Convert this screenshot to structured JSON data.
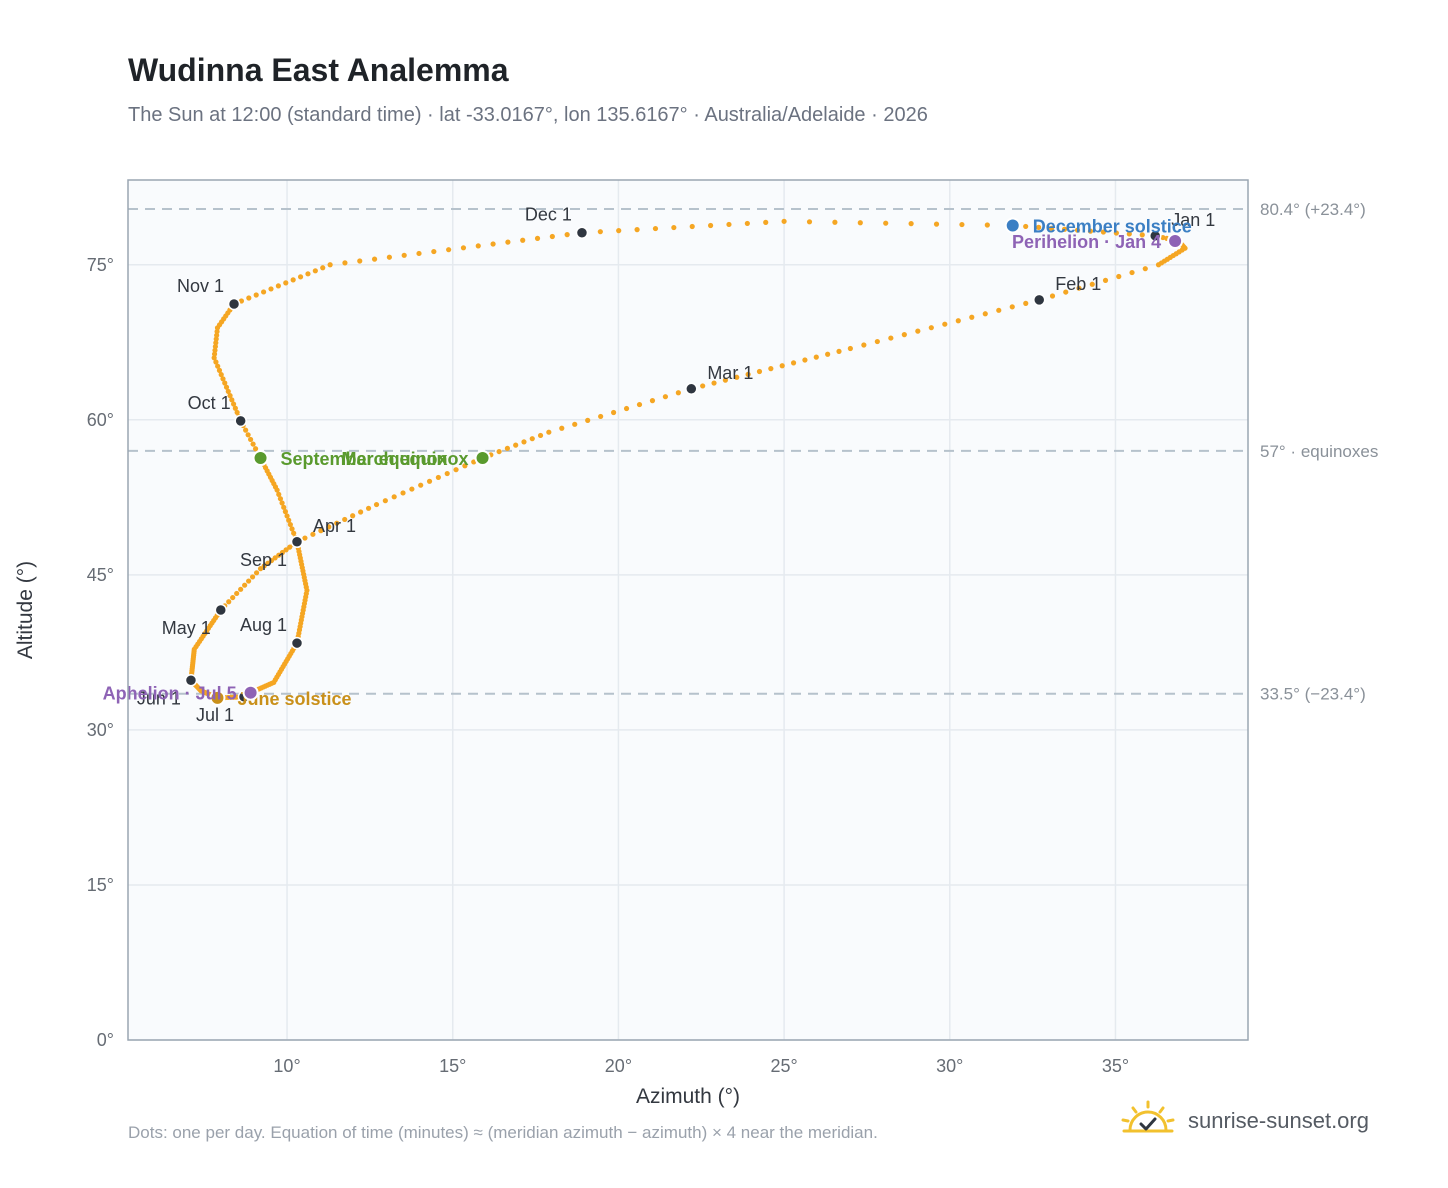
{
  "header": {
    "title": "Wudinna East Analemma",
    "subtitle": "The Sun at 12:00 (standard time) · lat -33.0167°, lon 135.6167° · Australia/Adelaide · 2026"
  },
  "footer": {
    "note": "Dots: one per day. Equation of time (minutes) ≈ (meridian azimuth − azimuth) × 4 near the meridian.",
    "brand": "sunrise-sunset.org"
  },
  "colors": {
    "path": "#f5a623",
    "month_dot": "#2f3640",
    "september_equinox": "#5a9a2e",
    "march_equinox": "#5a9a2e",
    "december_solstice": "#3b7fc4",
    "june_solstice": "#c9901a",
    "perihelion": "#8e63b5",
    "aphelion": "#8e63b5",
    "ref_line": "#b6c2cc",
    "plot_bg": "#f9fbfd",
    "grid": "#e5eaef",
    "frame": "#9aa6b2",
    "brand_sun": "#f2c12e"
  },
  "icons": {
    "brand": "sun-check-icon"
  },
  "chart_data": {
    "type": "scatter",
    "xlabel": "Azimuth (°)",
    "ylabel": "Altitude (°)",
    "xlim": [
      5.2,
      39
    ],
    "ylim": [
      0,
      83.2
    ],
    "x_ticks": [
      10,
      15,
      20,
      25,
      30,
      35
    ],
    "x_tick_labels": [
      "10°",
      "15°",
      "20°",
      "25°",
      "30°",
      "35°"
    ],
    "y_ticks": [
      0,
      15,
      30,
      45,
      60,
      75
    ],
    "y_tick_labels": [
      "0°",
      "15°",
      "30°",
      "45°",
      "60°",
      "75°"
    ],
    "grid": true,
    "reference_lines": [
      {
        "y": 80.4,
        "label": "80.4° (+23.4°)"
      },
      {
        "y": 57,
        "label": "57° · equinoxes"
      },
      {
        "y": 33.5,
        "label": "33.5° (−23.4°)"
      }
    ],
    "path_anchors": [
      {
        "day": 0,
        "x": 36.2,
        "y": 77.8
      },
      {
        "day": 6,
        "x": 36.9,
        "y": 77.3
      },
      {
        "day": 13,
        "x": 37.1,
        "y": 76.6
      },
      {
        "day": 22,
        "x": 36.3,
        "y": 75.0
      },
      {
        "day": 31,
        "x": 32.7,
        "y": 71.6
      },
      {
        "day": 45,
        "x": 27.0,
        "y": 66.9
      },
      {
        "day": 59,
        "x": 22.2,
        "y": 63.0
      },
      {
        "day": 70,
        "x": 17.9,
        "y": 58.8
      },
      {
        "day": 78,
        "x": 15.9,
        "y": 56.3
      },
      {
        "day": 90,
        "x": 12.7,
        "y": 51.8
      },
      {
        "day": 100,
        "x": 10.3,
        "y": 48.2
      },
      {
        "day": 110,
        "x": 9.2,
        "y": 45.6
      },
      {
        "day": 120,
        "x": 8.0,
        "y": 41.6
      },
      {
        "day": 135,
        "x": 7.2,
        "y": 37.8
      },
      {
        "day": 151,
        "x": 7.1,
        "y": 34.8
      },
      {
        "day": 160,
        "x": 7.4,
        "y": 33.8
      },
      {
        "day": 171,
        "x": 7.9,
        "y": 33.1
      },
      {
        "day": 181,
        "x": 8.7,
        "y": 33.2
      },
      {
        "day": 186,
        "x": 8.9,
        "y": 33.6
      },
      {
        "day": 197,
        "x": 9.6,
        "y": 34.6
      },
      {
        "day": 212,
        "x": 10.3,
        "y": 38.4
      },
      {
        "day": 228,
        "x": 10.6,
        "y": 43.5
      },
      {
        "day": 243,
        "x": 10.3,
        "y": 48.2
      },
      {
        "day": 255,
        "x": 9.7,
        "y": 53.2
      },
      {
        "day": 265,
        "x": 9.2,
        "y": 56.3
      },
      {
        "day": 273,
        "x": 8.6,
        "y": 59.9
      },
      {
        "day": 288,
        "x": 7.8,
        "y": 66.0
      },
      {
        "day": 296,
        "x": 7.9,
        "y": 68.9
      },
      {
        "day": 304,
        "x": 8.4,
        "y": 71.2
      },
      {
        "day": 317,
        "x": 11.3,
        "y": 75.0
      },
      {
        "day": 334,
        "x": 18.9,
        "y": 78.1
      },
      {
        "day": 345,
        "x": 25.0,
        "y": 79.2
      },
      {
        "day": 354,
        "x": 31.9,
        "y": 78.8
      },
      {
        "day": 365,
        "x": 36.2,
        "y": 77.8
      }
    ],
    "month_markers": [
      {
        "label": "Jan 1",
        "x": 36.2,
        "y": 77.8,
        "pos": "above-right"
      },
      {
        "label": "Feb 1",
        "x": 32.7,
        "y": 71.6,
        "pos": "above-right"
      },
      {
        "label": "Mar 1",
        "x": 22.2,
        "y": 63.0,
        "pos": "above-right"
      },
      {
        "label": "Apr 1",
        "x": 10.3,
        "y": 48.2,
        "pos": "above-right"
      },
      {
        "label": "May 1",
        "x": 8.0,
        "y": 41.6,
        "pos": "below-left"
      },
      {
        "label": "Jun 1",
        "x": 7.1,
        "y": 34.8,
        "pos": "below-left"
      },
      {
        "label": "Jul 1",
        "x": 8.7,
        "y": 33.2,
        "pos": "below-left"
      },
      {
        "label": "Aug 1",
        "x": 10.3,
        "y": 38.4,
        "pos": "above-left"
      },
      {
        "label": "Sep 1",
        "x": 10.3,
        "y": 48.2,
        "pos": "below-left"
      },
      {
        "label": "Oct 1",
        "x": 8.6,
        "y": 59.9,
        "pos": "above-left"
      },
      {
        "label": "Nov 1",
        "x": 8.4,
        "y": 71.2,
        "pos": "above-left"
      },
      {
        "label": "Dec 1",
        "x": 18.9,
        "y": 78.1,
        "pos": "above-left"
      }
    ],
    "events": [
      {
        "label": "September equinox",
        "x": 9.2,
        "y": 56.3,
        "color_key": "september_equinox",
        "pos": "right"
      },
      {
        "label": "March equinox",
        "x": 15.9,
        "y": 56.3,
        "color_key": "march_equinox",
        "pos": "left"
      },
      {
        "label": "December solstice",
        "x": 31.9,
        "y": 78.8,
        "color_key": "december_solstice",
        "pos": "right"
      },
      {
        "label": "Perihelion · Jan 4",
        "x": 36.8,
        "y": 77.3,
        "color_key": "perihelion",
        "pos": "left"
      },
      {
        "label": "June solstice",
        "x": 7.9,
        "y": 33.1,
        "color_key": "june_solstice",
        "pos": "right"
      },
      {
        "label": "Aphelion · Jul 5",
        "x": 8.9,
        "y": 33.6,
        "color_key": "aphelion",
        "pos": "left"
      }
    ]
  }
}
